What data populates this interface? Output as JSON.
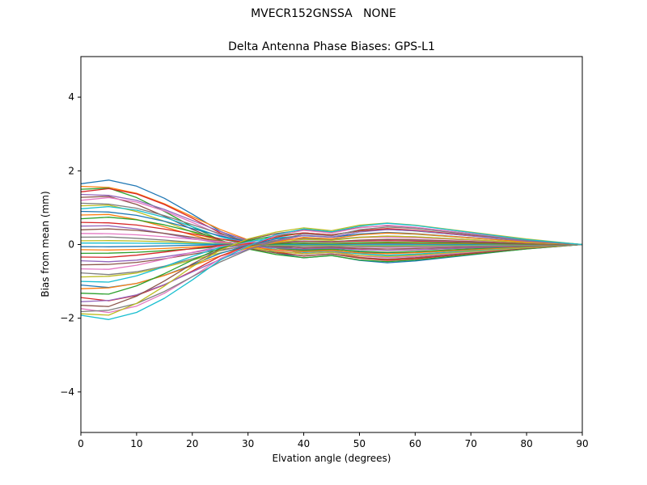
{
  "colors": {
    "background": "#ffffff",
    "axes_border": "#000000",
    "text": "#000000"
  },
  "chart_data": {
    "type": "line",
    "suptitle": "MVECR152GNSSA   NONE",
    "title": "Delta Antenna Phase Biases: GPS-L1",
    "xlabel": "Elvation angle (degrees)",
    "ylabel": "Bias from mean (mm)",
    "xlim": [
      0,
      90
    ],
    "ylim": [
      -5.1,
      5.1
    ],
    "x_ticks": [
      0,
      10,
      20,
      30,
      40,
      50,
      60,
      70,
      80,
      90
    ],
    "y_ticks": [
      -4,
      -2,
      0,
      2,
      4
    ],
    "grid": false,
    "legend_position": "none",
    "x": [
      0,
      5,
      10,
      15,
      20,
      25,
      30,
      35,
      40,
      45,
      50,
      55,
      60,
      70,
      80,
      90
    ],
    "shapes": {
      "s1": [
        1.0,
        1.06,
        0.96,
        0.76,
        0.5,
        0.22,
        0.02,
        -0.14,
        -0.22,
        -0.18,
        -0.26,
        -0.3,
        -0.27,
        -0.17,
        -0.07,
        0.0
      ],
      "s2": [
        1.0,
        0.98,
        0.88,
        0.7,
        0.48,
        0.26,
        0.08,
        -0.06,
        -0.16,
        -0.13,
        -0.22,
        -0.26,
        -0.24,
        -0.15,
        -0.06,
        0.0
      ],
      "s3": [
        1.0,
        1.02,
        0.85,
        0.6,
        0.32,
        0.08,
        -0.08,
        -0.18,
        -0.24,
        -0.2,
        -0.28,
        -0.31,
        -0.28,
        -0.18,
        -0.08,
        0.0
      ]
    },
    "series": [
      {
        "amplitude": 1.65,
        "shape": "s1"
      },
      {
        "amplitude": 1.58,
        "shape": "s2"
      },
      {
        "amplitude": 1.5,
        "shape": "s3"
      },
      {
        "amplitude": 1.43,
        "shape": "s1"
      },
      {
        "amplitude": 1.36,
        "shape": "s2"
      },
      {
        "amplitude": 1.28,
        "shape": "s3"
      },
      {
        "amplitude": 1.2,
        "shape": "s1"
      },
      {
        "amplitude": 1.12,
        "shape": "s2"
      },
      {
        "amplitude": 1.05,
        "shape": "s3"
      },
      {
        "amplitude": 0.97,
        "shape": "s1"
      },
      {
        "amplitude": 0.9,
        "shape": "s2"
      },
      {
        "amplitude": 0.8,
        "shape": "s3"
      },
      {
        "amplitude": 0.7,
        "shape": "s1"
      },
      {
        "amplitude": 0.6,
        "shape": "s2"
      },
      {
        "amplitude": 0.5,
        "shape": "s3"
      },
      {
        "amplitude": 0.4,
        "shape": "s1"
      },
      {
        "amplitude": 0.3,
        "shape": "s2"
      },
      {
        "amplitude": 0.2,
        "shape": "s3"
      },
      {
        "amplitude": 0.1,
        "shape": "s1"
      },
      {
        "amplitude": 0.04,
        "shape": "s2"
      },
      {
        "amplitude": -0.06,
        "shape": "s3"
      },
      {
        "amplitude": -0.14,
        "shape": "s1"
      },
      {
        "amplitude": -0.24,
        "shape": "s2"
      },
      {
        "amplitude": -0.34,
        "shape": "s3"
      },
      {
        "amplitude": -0.44,
        "shape": "s1"
      },
      {
        "amplitude": -0.55,
        "shape": "s2"
      },
      {
        "amplitude": -0.66,
        "shape": "s3"
      },
      {
        "amplitude": -0.77,
        "shape": "s1"
      },
      {
        "amplitude": -0.88,
        "shape": "s2"
      },
      {
        "amplitude": -1.0,
        "shape": "s3"
      },
      {
        "amplitude": -1.1,
        "shape": "s1"
      },
      {
        "amplitude": -1.2,
        "shape": "s2"
      },
      {
        "amplitude": -1.32,
        "shape": "s3"
      },
      {
        "amplitude": -1.44,
        "shape": "s1"
      },
      {
        "amplitude": -1.55,
        "shape": "s2"
      },
      {
        "amplitude": -1.65,
        "shape": "s3"
      },
      {
        "amplitude": -1.74,
        "shape": "s1"
      },
      {
        "amplitude": -1.82,
        "shape": "s2"
      },
      {
        "amplitude": -1.88,
        "shape": "s3"
      },
      {
        "amplitude": -1.92,
        "shape": "s1"
      }
    ],
    "palette": [
      "#1f77b4",
      "#ff7f0e",
      "#2ca02c",
      "#d62728",
      "#9467bd",
      "#8c564b",
      "#e377c2",
      "#7f7f7f",
      "#bcbd22",
      "#17becf"
    ]
  }
}
